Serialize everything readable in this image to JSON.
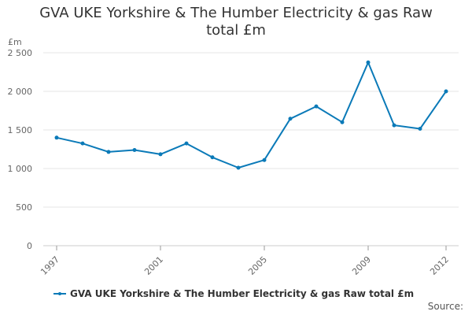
{
  "chart_data": {
    "type": "line",
    "title_line1": "GVA UKE Yorkshire & The Humber Electricity & gas Raw",
    "title_line2": "total £m",
    "yunit": "£m",
    "x": [
      1997,
      1998,
      1999,
      2000,
      2001,
      2002,
      2003,
      2004,
      2005,
      2006,
      2007,
      2008,
      2009,
      2010,
      2011,
      2012
    ],
    "xticks": [
      "1997",
      "2001",
      "2005",
      "2009",
      "2012"
    ],
    "yticks": [
      "0",
      "500",
      "1 000",
      "1 500",
      "2 000",
      "2 500"
    ],
    "ytick_values": [
      0,
      500,
      1000,
      1500,
      2000,
      2500
    ],
    "ylim": [
      0,
      2500
    ],
    "grid": true,
    "legend_position": "bottom-left",
    "series": [
      {
        "name": "GVA UKE Yorkshire & The Humber Electricity & gas Raw total £m",
        "color": "#0b7ab8",
        "values": [
          1400,
          1325,
          1215,
          1240,
          1185,
          1325,
          1145,
          1010,
          1110,
          1645,
          1805,
          1600,
          2375,
          1560,
          1515,
          2000
        ]
      }
    ],
    "source_label": "Source:"
  }
}
